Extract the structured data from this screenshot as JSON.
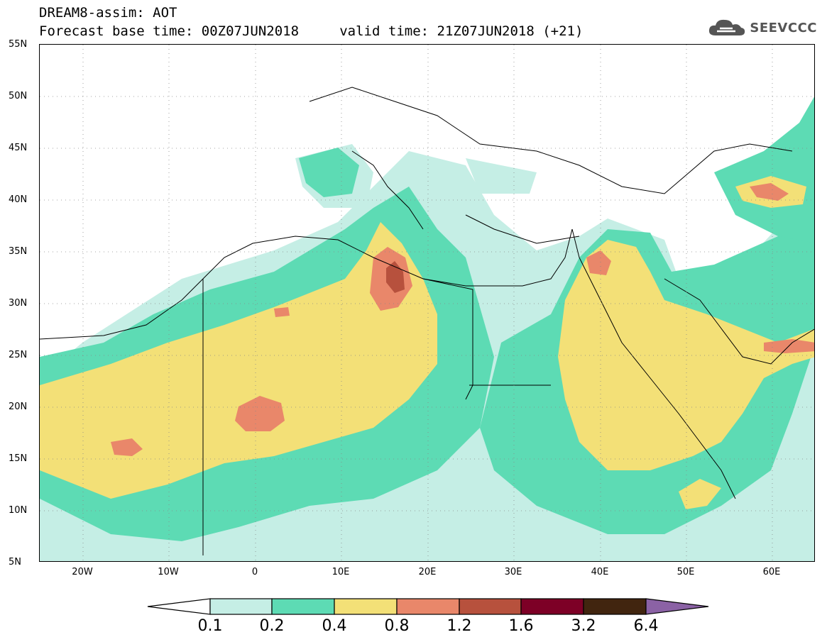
{
  "header": {
    "line1": "DREAM8-assim: AOT",
    "line2": "Forecast base time: 00Z07JUN2018     valid time: 21Z07JUN2018 (+21)"
  },
  "logo": {
    "text": "SEEVCCC",
    "icon": "cloud-logo-icon"
  },
  "map": {
    "field": "AOT",
    "lon_range": [
      -25,
      65
    ],
    "lat_range": [
      5,
      55
    ],
    "y_ticks": [
      "55N",
      "50N",
      "45N",
      "40N",
      "35N",
      "30N",
      "25N",
      "20N",
      "15N",
      "10N",
      "5N"
    ],
    "x_ticks": [
      "20W",
      "10W",
      "0",
      "10E",
      "20E",
      "30E",
      "40E",
      "50E",
      "60E"
    ],
    "grid": true
  },
  "colorbar": {
    "labels": [
      "0.1",
      "0.2",
      "0.4",
      "0.8",
      "1.2",
      "1.6",
      "3.2",
      "6.4"
    ],
    "colors": {
      "below": "#ffffff",
      "c1": "#c5eee5",
      "c2": "#5ddbb4",
      "c3": "#f3e077",
      "c4": "#e9876a",
      "c5": "#b7513d",
      "c6": "#7d0026",
      "c7": "#41250f",
      "above": "#8b62a5"
    }
  }
}
